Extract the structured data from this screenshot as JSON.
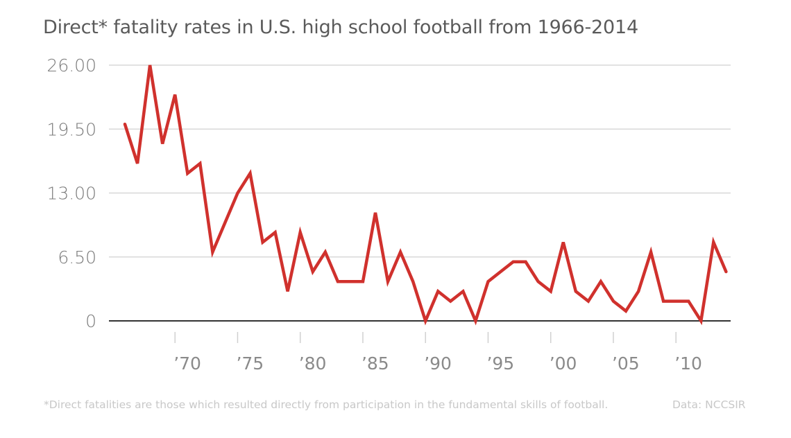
{
  "chart_data": {
    "type": "line",
    "title": "Direct* fatality rates in U.S. high school football from 1966-2014",
    "xlabel": "",
    "ylabel": "",
    "ylim": [
      0,
      26
    ],
    "xlim": [
      1966,
      2014
    ],
    "grid": true,
    "legend": "none",
    "yticks": [
      {
        "value": 0,
        "label": "0"
      },
      {
        "value": 6.5,
        "label": "6.50"
      },
      {
        "value": 13,
        "label": "13.00"
      },
      {
        "value": 19.5,
        "label": "19.50"
      },
      {
        "value": 26,
        "label": "26.00"
      }
    ],
    "xticks": [
      {
        "value": 1970,
        "label": "’70"
      },
      {
        "value": 1975,
        "label": "’75"
      },
      {
        "value": 1980,
        "label": "’80"
      },
      {
        "value": 1985,
        "label": "’85"
      },
      {
        "value": 1990,
        "label": "’90"
      },
      {
        "value": 1995,
        "label": "’95"
      },
      {
        "value": 2000,
        "label": "’00"
      },
      {
        "value": 2005,
        "label": "’05"
      },
      {
        "value": 2010,
        "label": "’10"
      }
    ],
    "series": [
      {
        "name": "Direct fatalities",
        "color": "#d0312d",
        "x": [
          1966,
          1967,
          1968,
          1969,
          1970,
          1971,
          1972,
          1973,
          1974,
          1975,
          1976,
          1977,
          1978,
          1979,
          1980,
          1981,
          1982,
          1983,
          1984,
          1985,
          1986,
          1987,
          1988,
          1989,
          1990,
          1991,
          1992,
          1993,
          1994,
          1995,
          1996,
          1997,
          1998,
          1999,
          2000,
          2001,
          2002,
          2003,
          2004,
          2005,
          2006,
          2007,
          2008,
          2009,
          2010,
          2011,
          2012,
          2013,
          2014
        ],
        "values": [
          20,
          16,
          26,
          18,
          23,
          15,
          16,
          7,
          10,
          13,
          15,
          8,
          9,
          3,
          9,
          5,
          7,
          4,
          4,
          4,
          11,
          4,
          7,
          4,
          0,
          3,
          2,
          3,
          0,
          4,
          5,
          6,
          6,
          4,
          3,
          8,
          3,
          2,
          4,
          2,
          1,
          3,
          7,
          2,
          2,
          2,
          0,
          8,
          5
        ]
      }
    ],
    "footnote": "*Direct fatalities are those which resulted directly from participation in the fundamental skills of football.",
    "source": "Data: NCCSIR"
  },
  "colors": {
    "line": "#d0312d",
    "grid": "#d8d8d8",
    "baseline": "#333333"
  }
}
